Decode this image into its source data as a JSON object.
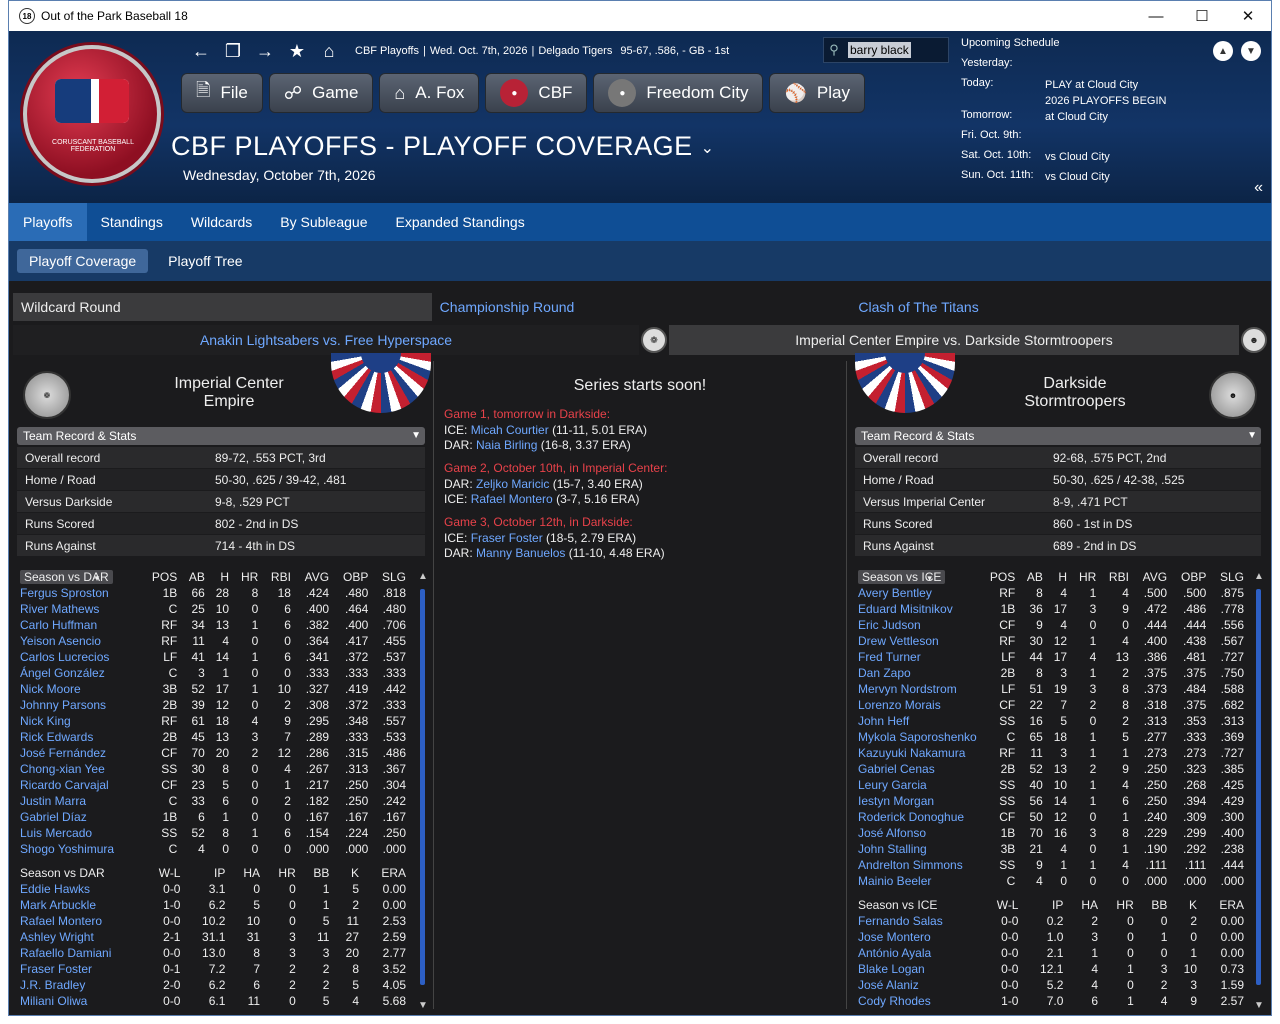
{
  "window": {
    "title": "Out of the Park Baseball 18",
    "icon": "18"
  },
  "nav": {
    "breadcrumb_league": "CBF Playoffs",
    "breadcrumb_date": "Wed. Oct. 7th, 2026",
    "breadcrumb_team": "Delgado Tigers",
    "breadcrumb_record": "95-67, .586, - GB - 1st",
    "search_value": "barry black"
  },
  "buttons": {
    "file": "File",
    "game": "Game",
    "manager": "A. Fox",
    "league": "CBF",
    "team": "Freedom City",
    "play": "Play"
  },
  "logo": {
    "text": "CORUSCANT BASEBALL FEDERATION"
  },
  "page": {
    "title": "CBF PLAYOFFS - PLAYOFF COVERAGE",
    "date": "Wednesday, October 7th, 2026"
  },
  "schedule": {
    "title": "Upcoming Schedule",
    "rows": [
      {
        "k": "Yesterday:",
        "v": "",
        "v2": ""
      },
      {
        "k": "Today:",
        "v": "PLAY at Cloud City",
        "v2": "2026 PLAYOFFS BEGIN"
      },
      {
        "k": "Tomorrow:",
        "v": "at Cloud City",
        "v2": ""
      },
      {
        "k": "Fri. Oct. 9th:",
        "v": "",
        "v2": ""
      },
      {
        "k": "Sat. Oct. 10th:",
        "v": "vs Cloud City",
        "v2": ""
      },
      {
        "k": "Sun. Oct. 11th:",
        "v": "vs Cloud City",
        "v2": ""
      }
    ]
  },
  "tabs": [
    "Playoffs",
    "Standings",
    "Wildcards",
    "By Subleague",
    "Expanded Standings"
  ],
  "subtabs": [
    "Playoff Coverage",
    "Playoff Tree"
  ],
  "rounds": [
    "Wildcard Round",
    "Championship Round",
    "Clash of The Titans"
  ],
  "series": [
    "Anakin Lightsabers vs. Free Hyperspace",
    "Imperial Center Empire vs. Darkside Stormtroopers"
  ],
  "left": {
    "team_line1": "Imperial Center",
    "team_line2": "Empire",
    "emblem": "EMPIRE",
    "dropdown": "Team Record & Stats",
    "record": [
      [
        "Overall record",
        "89-72, .553 PCT, 3rd"
      ],
      [
        "Home / Road",
        "50-30, .625 / 39-42, .481"
      ],
      [
        "Versus Darkside",
        "9-8, .529 PCT"
      ],
      [
        "Runs Scored",
        "802 - 2nd  in DS"
      ],
      [
        "Runs Against",
        "714 - 4th  in DS"
      ]
    ],
    "bat_select": "Season vs DAR",
    "bat_cols": [
      "POS",
      "AB",
      "H",
      "HR",
      "RBI",
      "AVG",
      "OBP",
      "SLG"
    ],
    "batters": [
      [
        "Fergus Sproston",
        "1B",
        "66",
        "28",
        "8",
        "18",
        ".424",
        ".480",
        ".818"
      ],
      [
        "River Mathews",
        "C",
        "25",
        "10",
        "0",
        "6",
        ".400",
        ".464",
        ".480"
      ],
      [
        "Carlo Huffman",
        "RF",
        "34",
        "13",
        "1",
        "6",
        ".382",
        ".400",
        ".706"
      ],
      [
        "Yeison Asencio",
        "RF",
        "11",
        "4",
        "0",
        "0",
        ".364",
        ".417",
        ".455"
      ],
      [
        "Carlos Lucrecios",
        "LF",
        "41",
        "14",
        "1",
        "6",
        ".341",
        ".372",
        ".537"
      ],
      [
        "Ángel González",
        "C",
        "3",
        "1",
        "0",
        "0",
        ".333",
        ".333",
        ".333"
      ],
      [
        "Nick Moore",
        "3B",
        "52",
        "17",
        "1",
        "10",
        ".327",
        ".419",
        ".442"
      ],
      [
        "Johnny Parsons",
        "2B",
        "39",
        "12",
        "0",
        "2",
        ".308",
        ".372",
        ".333"
      ],
      [
        "Nick King",
        "RF",
        "61",
        "18",
        "4",
        "9",
        ".295",
        ".348",
        ".557"
      ],
      [
        "Rick Edwards",
        "2B",
        "45",
        "13",
        "3",
        "7",
        ".289",
        ".333",
        ".533"
      ],
      [
        "José Fernández",
        "CF",
        "70",
        "20",
        "2",
        "12",
        ".286",
        ".315",
        ".486"
      ],
      [
        "Chong-xian Yee",
        "SS",
        "30",
        "8",
        "0",
        "4",
        ".267",
        ".313",
        ".367"
      ],
      [
        "Ricardo Carvajal",
        "CF",
        "23",
        "5",
        "0",
        "1",
        ".217",
        ".250",
        ".304"
      ],
      [
        "Justin Marra",
        "C",
        "33",
        "6",
        "0",
        "2",
        ".182",
        ".250",
        ".242"
      ],
      [
        "Gabriel Díaz",
        "1B",
        "6",
        "1",
        "0",
        "0",
        ".167",
        ".167",
        ".167"
      ],
      [
        "Luis Mercado",
        "SS",
        "52",
        "8",
        "1",
        "6",
        ".154",
        ".224",
        ".250"
      ],
      [
        "Shogo Yoshimura",
        "C",
        "4",
        "0",
        "0",
        "0",
        ".000",
        ".000",
        ".000"
      ]
    ],
    "pit_label": "Season vs DAR",
    "pit_cols": [
      "W-L",
      "IP",
      "HA",
      "HR",
      "BB",
      "K",
      "ERA"
    ],
    "pitchers": [
      [
        "Eddie Hawks",
        "0-0",
        "3.1",
        "0",
        "0",
        "1",
        "5",
        "0.00"
      ],
      [
        "Mark Arbuckle",
        "1-0",
        "6.2",
        "5",
        "0",
        "1",
        "2",
        "0.00"
      ],
      [
        "Rafael Montero",
        "0-0",
        "10.2",
        "10",
        "0",
        "5",
        "11",
        "2.53"
      ],
      [
        "Ashley Wright",
        "2-1",
        "31.1",
        "31",
        "3",
        "11",
        "27",
        "2.59"
      ],
      [
        "Rafaello Damiani",
        "0-0",
        "13.0",
        "8",
        "3",
        "3",
        "20",
        "2.77"
      ],
      [
        "Fraser Foster",
        "0-1",
        "7.2",
        "7",
        "2",
        "2",
        "8",
        "3.52"
      ],
      [
        "J.R. Bradley",
        "2-0",
        "6.2",
        "6",
        "2",
        "2",
        "5",
        "4.05"
      ],
      [
        "Miliani Oliwa",
        "0-0",
        "6.1",
        "11",
        "0",
        "5",
        "4",
        "5.68"
      ]
    ]
  },
  "right": {
    "team_line1": "Darkside",
    "team_line2": "Stormtroopers",
    "emblem": "DS",
    "dropdown": "Team Record & Stats",
    "record": [
      [
        "Overall record",
        "92-68, .575 PCT, 2nd"
      ],
      [
        "Home / Road",
        "50-30, .625 / 42-38, .525"
      ],
      [
        "Versus Imperial Center",
        "8-9, .471 PCT"
      ],
      [
        "Runs Scored",
        "860 - 1st  in DS"
      ],
      [
        "Runs Against",
        "689 - 2nd  in DS"
      ]
    ],
    "bat_select": "Season vs ICE",
    "bat_cols": [
      "POS",
      "AB",
      "H",
      "HR",
      "RBI",
      "AVG",
      "OBP",
      "SLG"
    ],
    "batters": [
      [
        "Avery Bentley",
        "RF",
        "8",
        "4",
        "1",
        "4",
        ".500",
        ".500",
        ".875"
      ],
      [
        "Eduard Misitnikov",
        "1B",
        "36",
        "17",
        "3",
        "9",
        ".472",
        ".486",
        ".778"
      ],
      [
        "Eric Judson",
        "CF",
        "9",
        "4",
        "0",
        "0",
        ".444",
        ".444",
        ".556"
      ],
      [
        "Drew Vettleson",
        "RF",
        "30",
        "12",
        "1",
        "4",
        ".400",
        ".438",
        ".567"
      ],
      [
        "Fred Turner",
        "LF",
        "44",
        "17",
        "4",
        "13",
        ".386",
        ".481",
        ".727"
      ],
      [
        "Dan Zapo",
        "2B",
        "8",
        "3",
        "1",
        "2",
        ".375",
        ".375",
        ".750"
      ],
      [
        "Mervyn Nordstrom",
        "LF",
        "51",
        "19",
        "3",
        "8",
        ".373",
        ".484",
        ".588"
      ],
      [
        "Lorenzo Morais",
        "CF",
        "22",
        "7",
        "2",
        "8",
        ".318",
        ".375",
        ".682"
      ],
      [
        "John Heff",
        "SS",
        "16",
        "5",
        "0",
        "2",
        ".313",
        ".353",
        ".313"
      ],
      [
        "Mykola Saporoshenko",
        "C",
        "65",
        "18",
        "1",
        "5",
        ".277",
        ".333",
        ".369"
      ],
      [
        "Kazuyuki Nakamura",
        "RF",
        "11",
        "3",
        "1",
        "1",
        ".273",
        ".273",
        ".727"
      ],
      [
        "Gabriel Cenas",
        "2B",
        "52",
        "13",
        "2",
        "9",
        ".250",
        ".323",
        ".385"
      ],
      [
        "Leury Garcia",
        "SS",
        "40",
        "10",
        "1",
        "4",
        ".250",
        ".268",
        ".425"
      ],
      [
        "Iestyn Morgan",
        "SS",
        "56",
        "14",
        "1",
        "6",
        ".250",
        ".394",
        ".429"
      ],
      [
        "Roderick Donoghue",
        "CF",
        "50",
        "12",
        "0",
        "1",
        ".240",
        ".309",
        ".300"
      ],
      [
        "José Alfonso",
        "1B",
        "70",
        "16",
        "3",
        "8",
        ".229",
        ".299",
        ".400"
      ],
      [
        "John Stalling",
        "3B",
        "21",
        "4",
        "0",
        "1",
        ".190",
        ".292",
        ".238"
      ],
      [
        "Andrelton Simmons",
        "SS",
        "9",
        "1",
        "1",
        "4",
        ".111",
        ".111",
        ".444"
      ],
      [
        "Mainio Beeler",
        "C",
        "4",
        "0",
        "0",
        "0",
        ".000",
        ".000",
        ".000"
      ]
    ],
    "pit_label": "Season vs ICE",
    "pit_cols": [
      "W-L",
      "IP",
      "HA",
      "HR",
      "BB",
      "K",
      "ERA"
    ],
    "pitchers": [
      [
        "Fernando Salas",
        "0-0",
        "0.2",
        "2",
        "0",
        "0",
        "2",
        "0.00"
      ],
      [
        "Jose Montero",
        "0-0",
        "1.0",
        "3",
        "0",
        "1",
        "0",
        "0.00"
      ],
      [
        "António Ayala",
        "0-0",
        "2.1",
        "1",
        "0",
        "0",
        "1",
        "0.00"
      ],
      [
        "Blake Logan",
        "0-0",
        "12.1",
        "4",
        "1",
        "3",
        "10",
        "0.73"
      ],
      [
        "José Alaniz",
        "0-0",
        "5.2",
        "4",
        "0",
        "2",
        "3",
        "1.59"
      ],
      [
        "Cody Rhodes",
        "1-0",
        "7.0",
        "6",
        "1",
        "4",
        "9",
        "2.57"
      ]
    ]
  },
  "middle": {
    "title": "Series starts soon!",
    "games": [
      {
        "head": "Game 1, tomorrow in Darkside:",
        "l1_team": "ICE:",
        "l1_p": "Micah Courtier",
        "l1_s": "(11-11, 5.01 ERA)",
        "l2_team": "DAR:",
        "l2_p": "Naia Birling",
        "l2_s": "(16-8, 3.37 ERA)"
      },
      {
        "head": "Game 2, October 10th, in Imperial Center:",
        "l1_team": "DAR:",
        "l1_p": "Zeljko Maricic",
        "l1_s": "(15-7, 3.40 ERA)",
        "l2_team": "ICE:",
        "l2_p": "Rafael Montero",
        "l2_s": "(3-7, 5.16 ERA)"
      },
      {
        "head": "Game 3, October 12th, in Darkside:",
        "l1_team": "ICE:",
        "l1_p": "Fraser Foster",
        "l1_s": "(18-5, 2.79 ERA)",
        "l2_team": "DAR:",
        "l2_p": "Manny Banuelos",
        "l2_s": "(11-10, 4.48 ERA)"
      }
    ]
  }
}
